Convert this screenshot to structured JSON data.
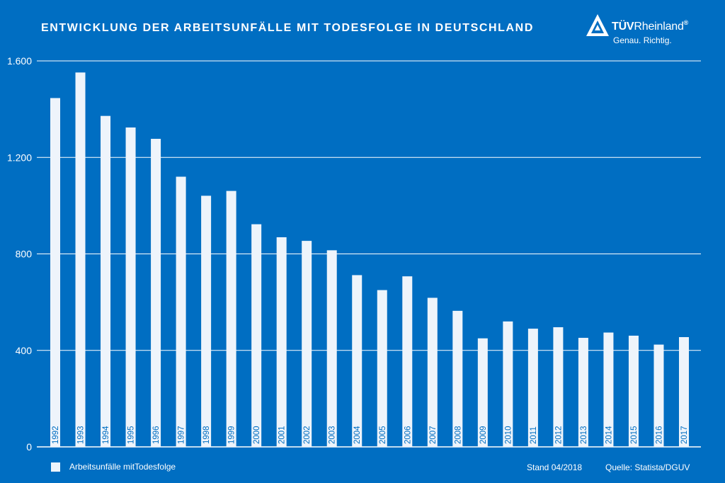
{
  "chart_data": {
    "type": "bar",
    "title": "ENTWICKLUNG DER ARBEITSUNFÄLLE MIT TODESFOLGE IN DEUTSCHLAND",
    "xlabel": "",
    "ylabel": "",
    "categories": [
      "1992",
      "1993",
      "1994",
      "1995",
      "1996",
      "1997",
      "1998",
      "1999",
      "2000",
      "2001",
      "2002",
      "2003",
      "2004",
      "2005",
      "2006",
      "2007",
      "2008",
      "2009",
      "2010",
      "2011",
      "2012",
      "2013",
      "2014",
      "2015",
      "2016",
      "2017"
    ],
    "series": [
      {
        "name": "Arbeitsunfälle mit Todesfolge",
        "values": [
          1446,
          1552,
          1372,
          1324,
          1277,
          1120,
          1041,
          1061,
          923,
          869,
          854,
          815,
          712,
          650,
          707,
          618,
          564,
          450,
          520,
          490,
          496,
          452,
          474,
          461,
          424,
          455
        ]
      }
    ],
    "ylim": [
      0,
      1600
    ],
    "yticks": [
      0,
      400,
      800,
      1200,
      1600
    ],
    "ytick_labels": [
      "0",
      "400",
      "800",
      "1.200",
      "1.600"
    ],
    "grid": true,
    "legend_position": "bottom-left",
    "colors": {
      "background": "#006ec2",
      "bar": "#eef4fb",
      "bar_label": "#006ec2",
      "text": "#ffffff",
      "grid": "#ffffff"
    }
  },
  "brand": {
    "word_bold": "TÜV",
    "word_light": "Rheinland",
    "registered": "®",
    "slogan": "Genau. Richtig."
  },
  "footer": {
    "legend_label": "Arbeitsunfälle mitTodesfolge",
    "stand": "Stand 04/2018",
    "source": "Quelle: Statista/DGUV"
  }
}
